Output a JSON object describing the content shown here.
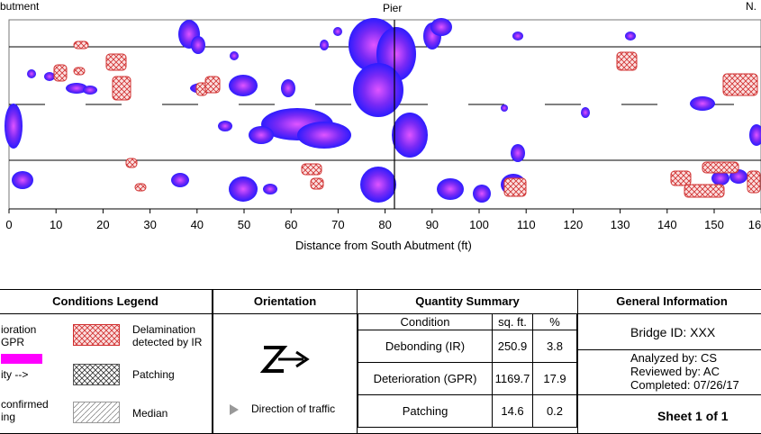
{
  "plot": {
    "top_left_label": "butment",
    "top_center_label": "Pier",
    "top_right_label": "N.",
    "x_ticks": [
      "0",
      "10",
      "20",
      "30",
      "40",
      "50",
      "60",
      "70",
      "80",
      "90",
      "100",
      "110",
      "120",
      "130",
      "140",
      "150",
      "16"
    ],
    "x_axis_label": "Distance from South Abutment (ft)"
  },
  "legend": {
    "title": "Conditions Legend",
    "left_items": [
      "ioration",
      "GPR",
      "ity -->",
      "confirmed",
      "ing"
    ],
    "right_items": [
      "Delamination",
      "detected by IR",
      "Patching",
      "Median"
    ]
  },
  "orientation": {
    "title": "Orientation",
    "traffic_label": "Direction of traffic"
  },
  "quantity": {
    "title": "Quantity Summary",
    "headers": [
      "Condition",
      "sq. ft.",
      "%"
    ],
    "rows": [
      {
        "condition": "Debonding (IR)",
        "sqft": "250.9",
        "pct": "3.8"
      },
      {
        "condition": "Deterioration (GPR)",
        "sqft": "1169.7",
        "pct": "17.9"
      },
      {
        "condition": "Patching",
        "sqft": "14.6",
        "pct": "0.2"
      }
    ]
  },
  "general": {
    "title": "General Information",
    "bridge_id": "Bridge ID: XXX",
    "analyzed": "Analyzed by:  CS",
    "reviewed": "Reviewed by:  AC",
    "completed": "Completed:    07/26/17",
    "sheet": "Sheet 1 of 1"
  },
  "colors": {
    "deterioration_blue": "#3a1bf0",
    "deterioration_magenta": "#e040f0",
    "delamination_red": "#d03030",
    "legend_magenta": "#ff00ff"
  }
}
